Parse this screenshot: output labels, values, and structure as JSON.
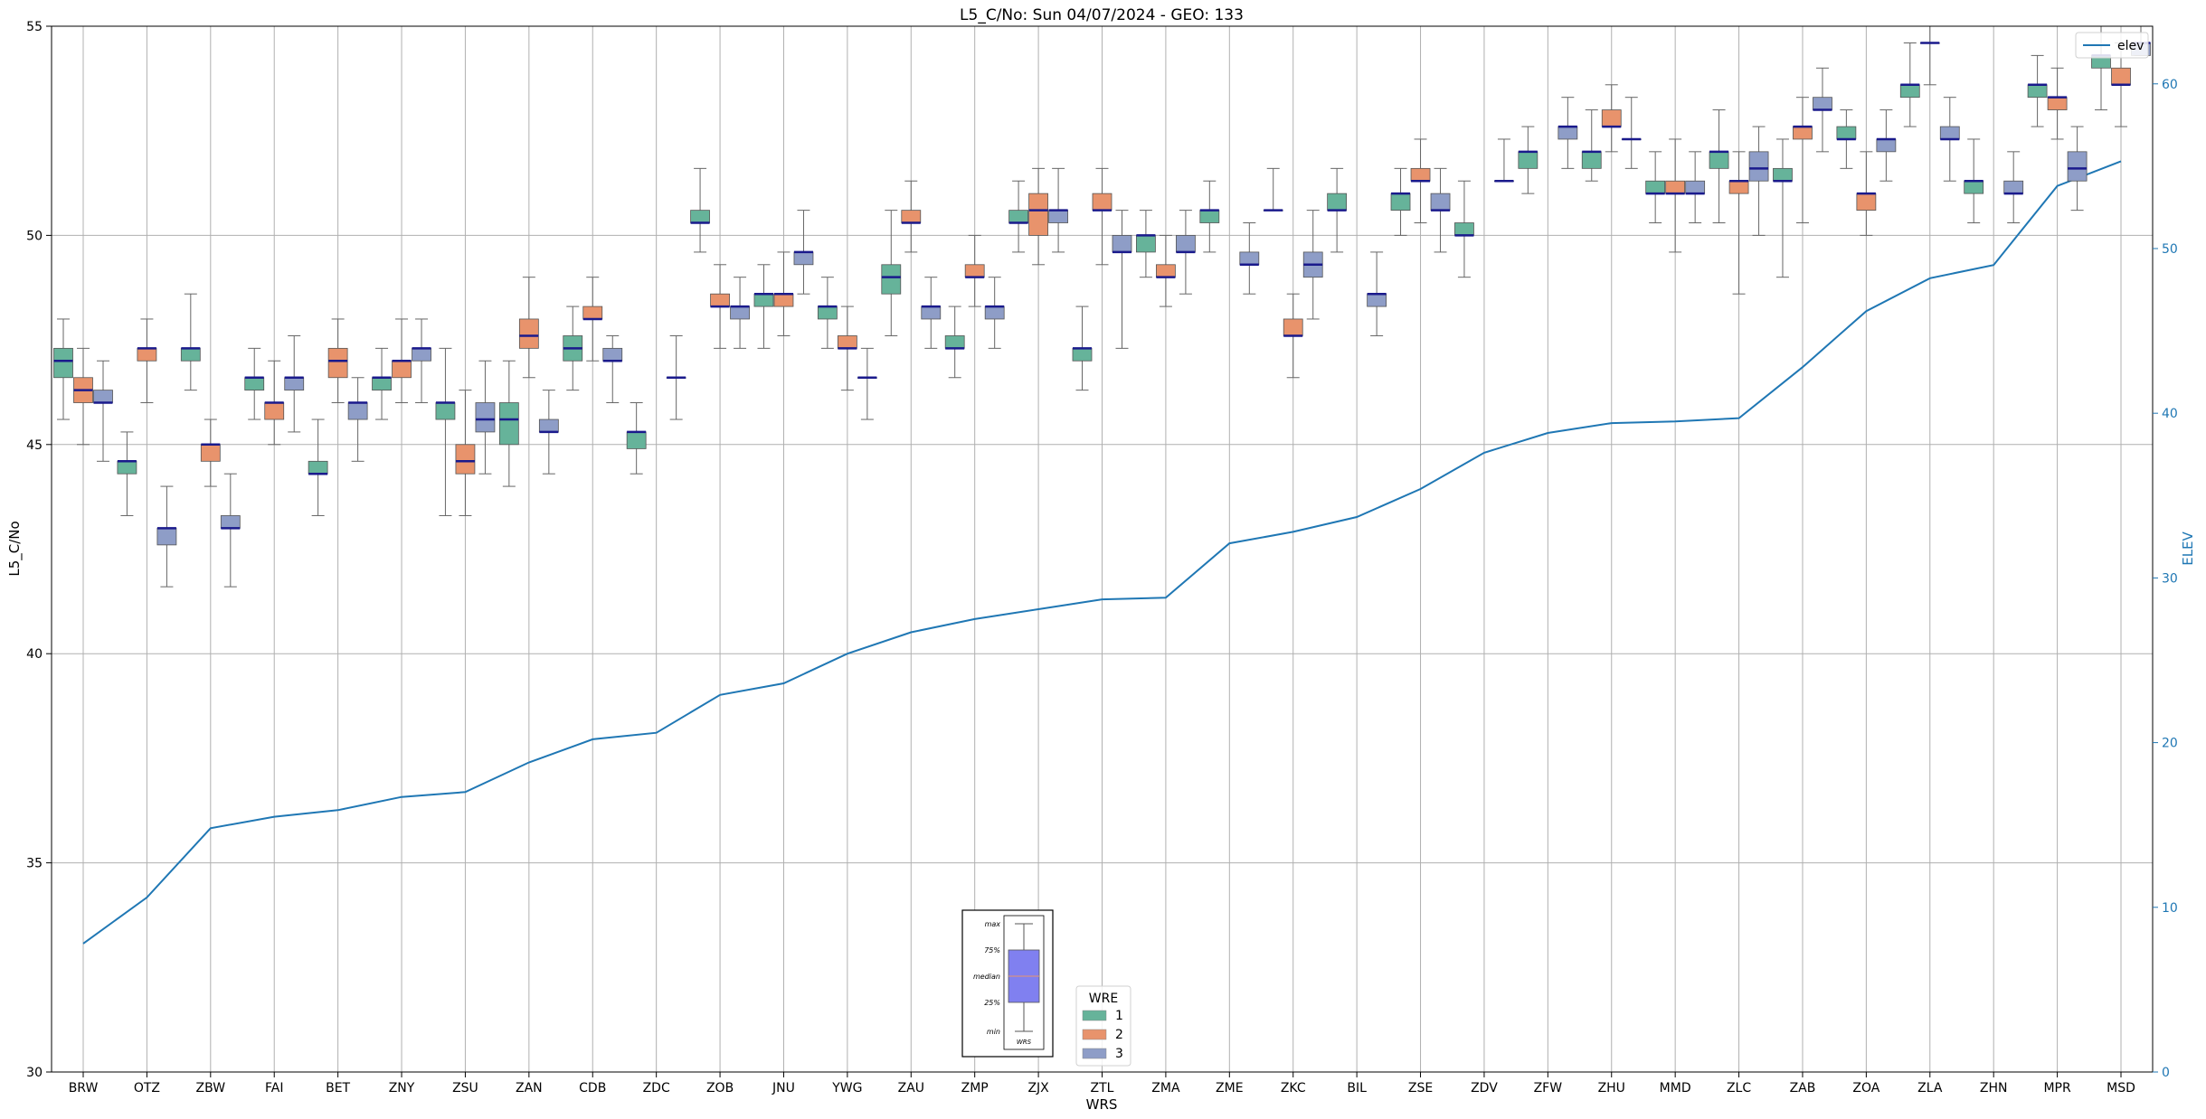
{
  "chart_data": {
    "type": "box",
    "title": "L5_C/No: Sun 04/07/2024 - GEO: 133",
    "xlabel": "WRS",
    "ylabel": "L5_C/No",
    "y2label": "ELEV",
    "ylim": [
      30,
      55
    ],
    "y2lim": [
      0,
      63.5
    ],
    "yticks": [
      "30",
      "35",
      "40",
      "45",
      "50",
      "55"
    ],
    "y2ticks": [
      "0",
      "10",
      "20",
      "30",
      "40",
      "50",
      "60"
    ],
    "grid": true,
    "categories": [
      "BRW",
      "OTZ",
      "ZBW",
      "FAI",
      "BET",
      "ZNY",
      "ZSU",
      "ZAN",
      "CDB",
      "ZDC",
      "ZOB",
      "JNU",
      "YWG",
      "ZAU",
      "ZMP",
      "ZJX",
      "ZTL",
      "ZMA",
      "ZME",
      "ZKC",
      "BIL",
      "ZSE",
      "ZDV",
      "ZFW",
      "ZHU",
      "MMD",
      "ZLC",
      "ZAB",
      "ZOA",
      "ZLA",
      "ZHN",
      "MPR",
      "MSD"
    ],
    "wre_legend": {
      "title": "WRE",
      "placement": "lower-center",
      "entries": [
        {
          "name": "1",
          "color": "#66b39a"
        },
        {
          "name": "2",
          "color": "#e8936c"
        },
        {
          "name": "3",
          "color": "#8e9dc7"
        }
      ]
    },
    "line_legend": {
      "label": "elev",
      "placement": "upper-right"
    },
    "box_key": {
      "labels": [
        "max",
        "75%",
        "median",
        "25%",
        "min"
      ],
      "xlabel": "WRS"
    },
    "elev_line": {
      "name": "elev",
      "color": "#1f77b4",
      "values": [
        7.8,
        10.6,
        14.8,
        15.5,
        15.9,
        16.7,
        17.0,
        18.8,
        20.2,
        20.6,
        22.9,
        23.6,
        25.4,
        26.7,
        27.5,
        28.1,
        28.7,
        28.8,
        32.1,
        32.8,
        33.7,
        35.4,
        37.6,
        38.8,
        39.4,
        39.5,
        39.7,
        42.8,
        46.2,
        48.2,
        49.0,
        53.8,
        55.3
      ]
    },
    "series": [
      {
        "name": "1",
        "color": "#66b39a",
        "boxes": [
          [
            0,
            45.6,
            46.6,
            47.0,
            47.3,
            48.0
          ],
          [
            1,
            43.3,
            44.3,
            44.6,
            44.6,
            45.3
          ],
          [
            2,
            46.3,
            47.0,
            47.3,
            47.3,
            48.6
          ],
          [
            3,
            45.6,
            46.3,
            46.6,
            46.6,
            47.3
          ],
          [
            4,
            43.3,
            44.3,
            44.3,
            44.6,
            45.6
          ],
          [
            5,
            45.6,
            46.3,
            46.6,
            46.6,
            47.3
          ],
          [
            6,
            43.3,
            45.6,
            46.0,
            46.0,
            47.3
          ],
          [
            7,
            44.0,
            45.0,
            45.6,
            46.0,
            47.0
          ],
          [
            8,
            46.3,
            47.0,
            47.3,
            47.6,
            48.3
          ],
          [
            9,
            44.3,
            44.9,
            45.3,
            45.3,
            46.0
          ],
          [
            10,
            49.6,
            50.3,
            50.3,
            50.6,
            51.6
          ],
          [
            11,
            47.3,
            48.3,
            48.6,
            48.6,
            49.3
          ],
          [
            12,
            47.3,
            48.0,
            48.3,
            48.3,
            49.0
          ],
          [
            13,
            47.6,
            48.6,
            49.0,
            49.3,
            50.6
          ],
          [
            14,
            46.6,
            47.3,
            47.3,
            47.6,
            48.3
          ],
          [
            15,
            49.6,
            50.3,
            50.3,
            50.6,
            51.3
          ],
          [
            16,
            46.3,
            47.0,
            47.3,
            47.3,
            48.3
          ],
          [
            17,
            49.0,
            49.6,
            50.0,
            50.0,
            50.6
          ],
          [
            18,
            49.6,
            50.3,
            50.6,
            50.6,
            51.3
          ],
          [
            19,
            50.6,
            50.6,
            50.6,
            50.6,
            51.6
          ],
          [
            20,
            49.6,
            50.6,
            50.6,
            51.0,
            51.6
          ],
          [
            21,
            50.0,
            50.6,
            51.0,
            51.0,
            51.6
          ],
          [
            22,
            49.0,
            50.0,
            50.0,
            50.3,
            51.3
          ],
          [
            23,
            51.0,
            51.6,
            52.0,
            52.0,
            52.6
          ],
          [
            24,
            51.3,
            51.6,
            52.0,
            52.0,
            53.0
          ],
          [
            25,
            50.3,
            51.0,
            51.0,
            51.3,
            52.0
          ],
          [
            26,
            50.3,
            51.6,
            52.0,
            52.0,
            53.0
          ],
          [
            27,
            49.0,
            51.3,
            51.3,
            51.6,
            52.3
          ],
          [
            28,
            51.6,
            52.3,
            52.3,
            52.6,
            53.0
          ],
          [
            29,
            52.6,
            53.3,
            53.6,
            53.6,
            54.6
          ],
          [
            30,
            50.3,
            51.0,
            51.3,
            51.3,
            52.3
          ],
          [
            31,
            52.6,
            53.3,
            53.6,
            53.6,
            54.3
          ],
          [
            32,
            53.0,
            54.0,
            54.3,
            54.3,
            55.0
          ]
        ]
      },
      {
        "name": "2",
        "color": "#e8936c",
        "boxes": [
          [
            0,
            45.0,
            46.0,
            46.3,
            46.6,
            47.3
          ],
          [
            1,
            46.0,
            47.0,
            47.3,
            47.3,
            48.0
          ],
          [
            2,
            44.0,
            44.6,
            45.0,
            45.0,
            45.6
          ],
          [
            3,
            45.0,
            45.6,
            46.0,
            46.0,
            47.0
          ],
          [
            4,
            46.0,
            46.6,
            47.0,
            47.3,
            48.0
          ],
          [
            5,
            46.0,
            46.6,
            47.0,
            47.0,
            48.0
          ],
          [
            6,
            43.3,
            44.3,
            44.6,
            45.0,
            46.3
          ],
          [
            7,
            46.6,
            47.3,
            47.6,
            48.0,
            49.0
          ],
          [
            8,
            47.0,
            48.0,
            48.0,
            48.3,
            49.0
          ],
          [
            10,
            47.3,
            48.3,
            48.3,
            48.6,
            49.3
          ],
          [
            11,
            47.6,
            48.3,
            48.6,
            48.6,
            49.6
          ],
          [
            12,
            46.3,
            47.3,
            47.3,
            47.6,
            48.3
          ],
          [
            13,
            49.6,
            50.3,
            50.3,
            50.6,
            51.3
          ],
          [
            14,
            48.3,
            49.0,
            49.0,
            49.3,
            50.0
          ],
          [
            15,
            49.3,
            50.0,
            50.6,
            51.0,
            51.6
          ],
          [
            16,
            49.3,
            50.6,
            50.6,
            51.0,
            51.6
          ],
          [
            17,
            48.3,
            49.0,
            49.0,
            49.3,
            50.0
          ],
          [
            19,
            46.6,
            47.6,
            47.6,
            48.0,
            48.6
          ],
          [
            21,
            50.3,
            51.3,
            51.3,
            51.6,
            52.3
          ],
          [
            24,
            52.0,
            52.6,
            52.6,
            53.0,
            53.6
          ],
          [
            25,
            49.6,
            51.0,
            51.0,
            51.3,
            52.3
          ],
          [
            26,
            48.6,
            51.0,
            51.3,
            51.3,
            52.0
          ],
          [
            27,
            50.3,
            52.3,
            52.6,
            52.6,
            53.3
          ],
          [
            28,
            50.0,
            50.6,
            51.0,
            51.0,
            52.0
          ],
          [
            29,
            53.6,
            54.6,
            54.6,
            54.6,
            55.0
          ],
          [
            31,
            52.3,
            53.0,
            53.3,
            53.3,
            54.0
          ],
          [
            32,
            52.6,
            53.6,
            53.6,
            54.0,
            54.6
          ]
        ]
      },
      {
        "name": "3",
        "color": "#8e9dc7",
        "boxes": [
          [
            0,
            44.6,
            46.0,
            46.0,
            46.3,
            47.0
          ],
          [
            1,
            41.6,
            42.6,
            43.0,
            43.0,
            44.0
          ],
          [
            2,
            41.6,
            43.0,
            43.0,
            43.3,
            44.3
          ],
          [
            3,
            45.3,
            46.3,
            46.6,
            46.6,
            47.6
          ],
          [
            4,
            44.6,
            45.6,
            46.0,
            46.0,
            46.6
          ],
          [
            5,
            46.0,
            47.0,
            47.3,
            47.3,
            48.0
          ],
          [
            6,
            44.3,
            45.3,
            45.6,
            46.0,
            47.0
          ],
          [
            7,
            44.3,
            45.3,
            45.3,
            45.6,
            46.3
          ],
          [
            8,
            46.0,
            47.0,
            47.0,
            47.3,
            47.6
          ],
          [
            9,
            45.6,
            46.6,
            46.6,
            46.6,
            47.6
          ],
          [
            10,
            47.3,
            48.0,
            48.3,
            48.3,
            49.0
          ],
          [
            11,
            48.6,
            49.3,
            49.6,
            49.6,
            50.6
          ],
          [
            12,
            45.6,
            46.6,
            46.6,
            46.6,
            47.3
          ],
          [
            13,
            47.3,
            48.0,
            48.3,
            48.3,
            49.0
          ],
          [
            14,
            47.3,
            48.0,
            48.3,
            48.3,
            49.0
          ],
          [
            15,
            49.6,
            50.3,
            50.6,
            50.6,
            51.6
          ],
          [
            16,
            47.3,
            49.6,
            49.6,
            50.0,
            50.6
          ],
          [
            17,
            48.6,
            49.6,
            49.6,
            50.0,
            50.6
          ],
          [
            18,
            48.6,
            49.3,
            49.3,
            49.6,
            50.3
          ],
          [
            19,
            48.0,
            49.0,
            49.3,
            49.6,
            50.6
          ],
          [
            20,
            47.6,
            48.3,
            48.6,
            48.6,
            49.6
          ],
          [
            21,
            49.6,
            50.6,
            50.6,
            51.0,
            51.6
          ],
          [
            22,
            51.3,
            51.3,
            51.3,
            51.3,
            52.3
          ],
          [
            23,
            51.6,
            52.3,
            52.6,
            52.6,
            53.3
          ],
          [
            24,
            51.6,
            52.3,
            52.3,
            52.3,
            53.3
          ],
          [
            25,
            50.3,
            51.0,
            51.0,
            51.3,
            52.0
          ],
          [
            26,
            50.0,
            51.3,
            51.6,
            52.0,
            52.6
          ],
          [
            27,
            52.0,
            53.0,
            53.0,
            53.3,
            54.0
          ],
          [
            28,
            51.3,
            52.0,
            52.3,
            52.3,
            53.0
          ],
          [
            29,
            51.3,
            52.3,
            52.3,
            52.6,
            53.3
          ],
          [
            30,
            50.3,
            51.0,
            51.0,
            51.3,
            52.0
          ],
          [
            31,
            50.6,
            51.3,
            51.6,
            52.0,
            52.6
          ],
          [
            32,
            54.3,
            54.3,
            54.6,
            54.6,
            55.0
          ]
        ]
      }
    ]
  }
}
